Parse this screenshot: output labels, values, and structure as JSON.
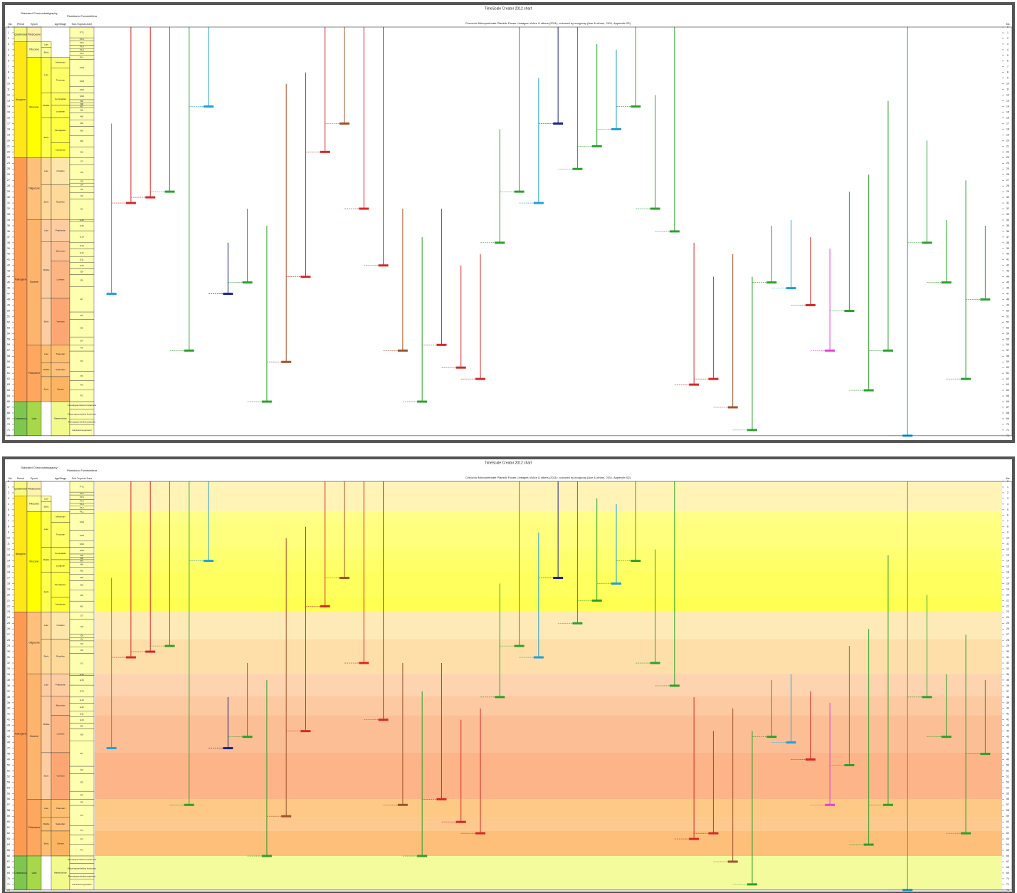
{
  "title": "TimeScale Creator 2012 chart",
  "subtitle": "Cenozoic Microperforate Planktic Foram Lineages of Aze & others (2011): coloured by ecogroup (Aze & others, 2011, Appendix S2)",
  "headers": {
    "chronostrat": "Standard Chronostratigraphy",
    "forams": "Planktonic Foraminifera",
    "ma": "Ma",
    "period": "Period",
    "epoch": "Epoch",
    "stage": "Age/Stage",
    "zone": "Sub-Tropical Zone"
  },
  "ma_ticks": [
    0,
    1,
    2,
    3,
    4,
    5,
    6,
    7,
    8,
    9,
    10,
    11,
    12,
    13,
    14,
    15,
    16,
    17,
    18,
    19,
    20,
    21,
    22,
    23,
    24,
    25,
    26,
    27,
    28,
    29,
    30,
    31,
    32,
    33,
    34,
    35,
    36,
    37,
    38,
    39,
    40,
    41,
    42,
    43,
    44,
    45,
    46,
    47,
    48,
    49,
    50,
    51,
    52,
    53,
    54,
    55,
    56,
    57,
    58,
    59,
    60,
    61,
    62,
    63,
    64,
    65,
    66,
    67,
    68,
    69,
    70,
    71,
    72
  ],
  "periods": [
    {
      "name": "Quaternary",
      "top": 0,
      "base": 2.6,
      "color": "#f9f97f"
    },
    {
      "name": "Neogene",
      "top": 2.6,
      "base": 23,
      "color": "#ffe619"
    },
    {
      "name": "Paleogene",
      "top": 23,
      "base": 66,
      "color": "#fd9a52"
    },
    {
      "name": "Cretaceous",
      "top": 66,
      "base": 72,
      "color": "#7fc64e"
    }
  ],
  "epochs": [
    {
      "name": "Pleistocene",
      "top": 0,
      "base": 2.6,
      "color": "#fff2ae"
    },
    {
      "name": "Pliocene",
      "top": 2.6,
      "base": 5.3,
      "color": "#ffff99"
    },
    {
      "name": "Miocene",
      "top": 5.3,
      "base": 23,
      "color": "#ffff00"
    },
    {
      "name": "Oligocene",
      "top": 23,
      "base": 33.9,
      "color": "#fec07a"
    },
    {
      "name": "Eocene",
      "top": 33.9,
      "base": 56,
      "color": "#fdb46c"
    },
    {
      "name": "Paleocene",
      "top": 56,
      "base": 66,
      "color": "#fda75f"
    },
    {
      "name": "Late",
      "top": 66,
      "base": 72,
      "color": "#a6d84a"
    }
  ],
  "subepochs": [
    {
      "name": "Late",
      "top": 2.6,
      "base": 3.6,
      "color": "#ffff99"
    },
    {
      "name": "Early",
      "top": 3.6,
      "base": 5.3,
      "color": "#ffff99"
    },
    {
      "name": "Late",
      "top": 5.3,
      "base": 11.6,
      "color": "#ffff4d"
    },
    {
      "name": "Middle",
      "top": 11.6,
      "base": 16,
      "color": "#ffff4d"
    },
    {
      "name": "Early",
      "top": 16,
      "base": 23,
      "color": "#ffff4d"
    },
    {
      "name": "Late",
      "top": 23,
      "base": 27.8,
      "color": "#fed99a"
    },
    {
      "name": "Early",
      "top": 27.8,
      "base": 33.9,
      "color": "#fed99a"
    },
    {
      "name": "Late",
      "top": 33.9,
      "base": 37.8,
      "color": "#fdcda1"
    },
    {
      "name": "Middle",
      "top": 37.8,
      "base": 47.8,
      "color": "#fdcda1"
    },
    {
      "name": "Early",
      "top": 47.8,
      "base": 56,
      "color": "#fdcda1"
    },
    {
      "name": "Late",
      "top": 56,
      "base": 59.2,
      "color": "#fdbf6f"
    },
    {
      "name": "Middle",
      "top": 59.2,
      "base": 61.6,
      "color": "#fdbf6f"
    },
    {
      "name": "Early",
      "top": 61.6,
      "base": 66,
      "color": "#fdbf6f"
    }
  ],
  "stages": [
    {
      "name": "Messinian",
      "top": 5.3,
      "base": 7.2,
      "color": "#ffff73"
    },
    {
      "name": "Tortonian",
      "top": 7.2,
      "base": 11.6,
      "color": "#ffff66"
    },
    {
      "name": "Serravallian",
      "top": 11.6,
      "base": 13.8,
      "color": "#ffff59"
    },
    {
      "name": "Langhian",
      "top": 13.8,
      "base": 16,
      "color": "#ffff4d"
    },
    {
      "name": "Burdigalian",
      "top": 16,
      "base": 20.4,
      "color": "#ffff41"
    },
    {
      "name": "Aquitanian",
      "top": 20.4,
      "base": 23,
      "color": "#ffff33"
    },
    {
      "name": "Chattian",
      "top": 23,
      "base": 27.8,
      "color": "#fee6aa"
    },
    {
      "name": "Rupelian",
      "top": 27.8,
      "base": 33.9,
      "color": "#fed99a"
    },
    {
      "name": "Priabonian",
      "top": 33.9,
      "base": 37.8,
      "color": "#fdcda1"
    },
    {
      "name": "Bartonian",
      "top": 37.8,
      "base": 41.2,
      "color": "#fdc091"
    },
    {
      "name": "Lutetian",
      "top": 41.2,
      "base": 47.8,
      "color": "#fcb482"
    },
    {
      "name": "Ypresian",
      "top": 47.8,
      "base": 56,
      "color": "#fca773"
    },
    {
      "name": "Thanetian",
      "top": 56,
      "base": 59.2,
      "color": "#fdbf6f"
    },
    {
      "name": "Selandian",
      "top": 59.2,
      "base": 61.6,
      "color": "#fec07a"
    },
    {
      "name": "Danian",
      "top": 61.6,
      "base": 66,
      "color": "#fdb462"
    },
    {
      "name": "Maastrichtian",
      "top": 66,
      "base": 72,
      "color": "#f2fa8c"
    }
  ],
  "zones": [
    {
      "name": "PT1",
      "top": 0,
      "base": 1.9
    },
    {
      "name": "PL6",
      "top": 1.9,
      "base": 2.4
    },
    {
      "name": "PL5",
      "top": 2.4,
      "base": 3.2
    },
    {
      "name": "PL4",
      "top": 3.2,
      "base": 3.8
    },
    {
      "name": "PL3",
      "top": 3.8,
      "base": 4.3
    },
    {
      "name": "PL2",
      "top": 4.3,
      "base": 5.0
    },
    {
      "name": "PL1",
      "top": 5.0,
      "base": 5.7
    },
    {
      "name": "M14",
      "top": 5.7,
      "base": 8.6
    },
    {
      "name": "M13",
      "top": 8.6,
      "base": 10.5
    },
    {
      "name": "M12",
      "top": 10.5,
      "base": 11.6
    },
    {
      "name": "M10",
      "top": 11.6,
      "base": 12.8
    },
    {
      "name": "M9",
      "top": 12.8,
      "base": 13.4
    },
    {
      "name": "M8",
      "top": 13.4,
      "base": 13.8
    },
    {
      "name": "M7",
      "top": 13.8,
      "base": 14.2
    },
    {
      "name": "M6",
      "top": 14.2,
      "base": 15.1
    },
    {
      "name": "M5",
      "top": 15.1,
      "base": 16.4
    },
    {
      "name": "M4",
      "top": 16.4,
      "base": 17.5
    },
    {
      "name": "M3",
      "top": 17.5,
      "base": 19.1
    },
    {
      "name": "M2",
      "top": 19.1,
      "base": 21.1
    },
    {
      "name": "M1",
      "top": 21.1,
      "base": 23
    },
    {
      "name": "O7",
      "top": 23,
      "base": 24.3
    },
    {
      "name": "O6",
      "top": 24.3,
      "base": 26.9
    },
    {
      "name": "O5",
      "top": 26.9,
      "base": 27.5
    },
    {
      "name": "O4",
      "top": 27.5,
      "base": 28.1
    },
    {
      "name": "O3",
      "top": 28.1,
      "base": 29.2
    },
    {
      "name": "O2",
      "top": 29.2,
      "base": 30.3
    },
    {
      "name": "O1",
      "top": 30.3,
      "base": 33.9
    },
    {
      "name": "E16",
      "top": 33.9,
      "base": 34.2
    },
    {
      "name": "E15",
      "top": 34.2,
      "base": 35.9
    },
    {
      "name": "E14",
      "top": 35.9,
      "base": 38.0
    },
    {
      "name": "E13",
      "top": 38.0,
      "base": 39.1
    },
    {
      "name": "E12",
      "top": 39.1,
      "base": 40.5
    },
    {
      "name": "E11",
      "top": 40.5,
      "base": 41.5
    },
    {
      "name": "E10",
      "top": 41.5,
      "base": 42.6
    },
    {
      "name": "E9",
      "top": 42.6,
      "base": 43.6
    },
    {
      "name": "E8",
      "top": 43.6,
      "base": 45.7
    },
    {
      "name": "E7",
      "top": 45.7,
      "base": 50.2
    },
    {
      "name": "E6",
      "top": 50.2,
      "base": 51.5
    },
    {
      "name": "E5",
      "top": 51.5,
      "base": 54.6
    },
    {
      "name": "E4",
      "top": 54.6,
      "base": 56
    },
    {
      "name": "P5",
      "top": 56,
      "base": 57.1
    },
    {
      "name": "P4",
      "top": 57.1,
      "base": 60.7
    },
    {
      "name": "P3",
      "top": 60.7,
      "base": 62.3
    },
    {
      "name": "P2",
      "top": 62.3,
      "base": 63.9
    },
    {
      "name": "P1",
      "top": 63.9,
      "base": 66
    },
    {
      "name": "Pseudoguembelina hariaensis",
      "top": 66,
      "base": 67.3
    },
    {
      "name": "Racemiguembelina fructicosa",
      "top": 67.3,
      "base": 69.1
    },
    {
      "name": "Pseudoguembelina palpebra",
      "top": 69.1,
      "base": 70.1
    },
    {
      "name": "Gansserina gansseri",
      "top": 70.1,
      "base": 72
    }
  ],
  "lineages": [
    {
      "start": 47,
      "end": 17,
      "color": "#1f9fd8"
    },
    {
      "start": 31,
      "end": 0,
      "color": "#d62728"
    },
    {
      "start": 30,
      "end": 0,
      "color": "#d62728"
    },
    {
      "start": 29,
      "end": 0,
      "color": "#2ca02c"
    },
    {
      "start": 57,
      "end": 0,
      "color": "#2ca02c"
    },
    {
      "start": 14,
      "end": 0,
      "color": "#1f9fd8"
    },
    {
      "start": 47,
      "end": 38,
      "color": "#1a237e"
    },
    {
      "start": 45,
      "end": 32,
      "color": "#2ca02c"
    },
    {
      "start": 66,
      "end": 35,
      "color": "#2ca02c"
    },
    {
      "start": 59,
      "end": 10,
      "color": "#a0522d"
    },
    {
      "start": 44,
      "end": 8,
      "color": "#d62728"
    },
    {
      "start": 22,
      "end": 0,
      "color": "#d62728"
    },
    {
      "start": 17,
      "end": 0,
      "color": "#a0522d"
    },
    {
      "start": 32,
      "end": 0,
      "color": "#d62728"
    },
    {
      "start": 42,
      "end": 0,
      "color": "#d62728"
    },
    {
      "start": 57,
      "end": 32,
      "color": "#a0522d"
    },
    {
      "start": 66,
      "end": 37,
      "color": "#2ca02c"
    },
    {
      "start": 56,
      "end": 32,
      "color": "#d62728"
    },
    {
      "start": 60,
      "end": 42,
      "color": "#d62728"
    },
    {
      "start": 62,
      "end": 40,
      "color": "#d62728"
    },
    {
      "start": 38,
      "end": 18,
      "color": "#2ca02c"
    },
    {
      "start": 29,
      "end": 0,
      "color": "#2ca02c"
    },
    {
      "start": 31,
      "end": 9,
      "color": "#1f9fd8"
    },
    {
      "start": 17,
      "end": 0,
      "color": "#1a237e"
    },
    {
      "start": 25,
      "end": 0,
      "color": "#2ca02c"
    },
    {
      "start": 21,
      "end": 3,
      "color": "#2ca02c"
    },
    {
      "start": 18,
      "end": 4,
      "color": "#1f9fd8"
    },
    {
      "start": 14,
      "end": 0,
      "color": "#2ca02c"
    },
    {
      "start": 32,
      "end": 12,
      "color": "#2ca02c"
    },
    {
      "start": 36,
      "end": 0,
      "color": "#2ca02c"
    },
    {
      "start": 63,
      "end": 38,
      "color": "#d62728"
    },
    {
      "start": 62,
      "end": 44,
      "color": "#d62728"
    },
    {
      "start": 67,
      "end": 40,
      "color": "#a0522d"
    },
    {
      "start": 71,
      "end": 44,
      "color": "#2ca02c"
    },
    {
      "start": 45,
      "end": 35,
      "color": "#2ca02c"
    },
    {
      "start": 46,
      "end": 34,
      "color": "#1f9fd8"
    },
    {
      "start": 49,
      "end": 37,
      "color": "#d62728"
    },
    {
      "start": 57,
      "end": 39,
      "color": "#e040e0"
    },
    {
      "start": 50,
      "end": 29,
      "color": "#2ca02c"
    },
    {
      "start": 64,
      "end": 26,
      "color": "#2ca02c"
    },
    {
      "start": 57,
      "end": 13,
      "color": "#2ca02c"
    },
    {
      "start": 72,
      "end": 0,
      "color": "#1f9fd8"
    },
    {
      "start": 38,
      "end": 20,
      "color": "#2ca02c"
    },
    {
      "start": 45,
      "end": 34,
      "color": "#2ca02c"
    },
    {
      "start": 62,
      "end": 27,
      "color": "#2ca02c"
    },
    {
      "start": 48,
      "end": 35,
      "color": "#2ca02c"
    }
  ]
}
